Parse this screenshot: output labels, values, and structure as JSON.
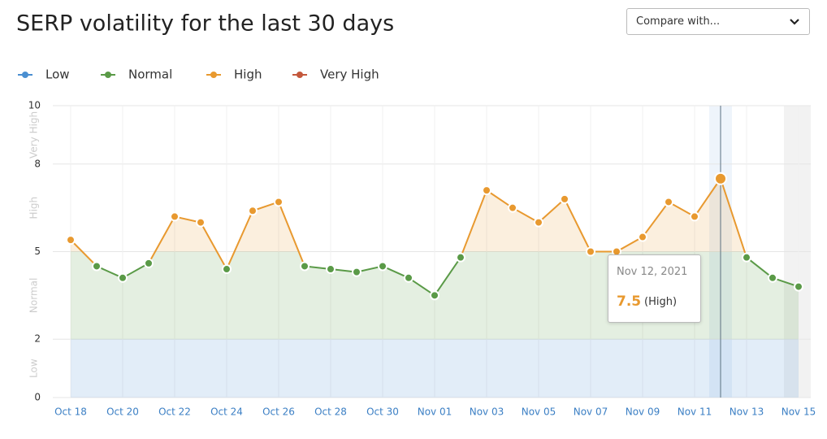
{
  "chart_data": {
    "type": "line",
    "title": "SERP volatility for the last 30 days",
    "compare": "Compare with...",
    "levels": [
      {
        "name": "Low",
        "color": "#4a8fd1",
        "range": [
          0,
          2
        ]
      },
      {
        "name": "Normal",
        "color": "#5a9a47",
        "range": [
          2,
          5
        ]
      },
      {
        "name": "High",
        "color": "#e8992f",
        "range": [
          5,
          8
        ]
      },
      {
        "name": "Very High",
        "color": "#c4583c",
        "range": [
          8,
          10
        ]
      }
    ],
    "categories": [
      "Oct 18",
      null,
      "Oct 20",
      null,
      "Oct 22",
      null,
      "Oct 24",
      null,
      "Oct 26",
      null,
      "Oct 28",
      null,
      "Oct 30",
      null,
      "Nov 01",
      null,
      "Nov 03",
      null,
      "Nov 05",
      null,
      "Nov 07",
      null,
      "Nov 09",
      null,
      "Nov 11",
      null,
      "Nov 13",
      null,
      "Nov 15"
    ],
    "values": [
      5.4,
      4.5,
      4.1,
      4.6,
      6.2,
      6.0,
      4.4,
      6.4,
      6.7,
      4.5,
      4.4,
      4.3,
      4.5,
      4.1,
      3.5,
      4.8,
      7.1,
      6.5,
      6.0,
      6.8,
      5.0,
      5.0,
      5.5,
      6.7,
      6.2,
      7.5,
      4.8,
      4.1,
      3.8
    ],
    "ylim": [
      0,
      10
    ],
    "yticks": [
      0,
      2,
      5,
      8,
      10
    ],
    "grid": true,
    "tooltip": {
      "date": "Nov 12, 2021",
      "value": 7.5,
      "level": "(High)"
    }
  }
}
